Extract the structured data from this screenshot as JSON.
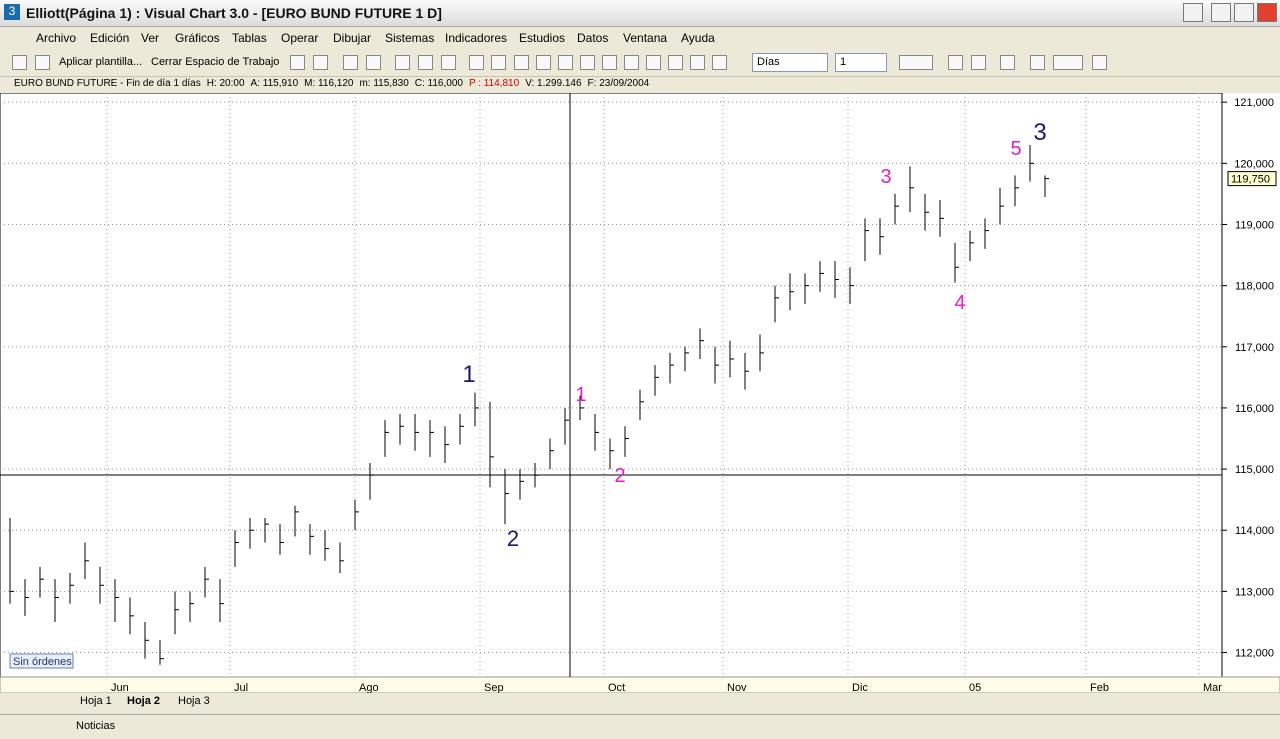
{
  "window": {
    "title": "Elliott(Página 1) : Visual Chart  3.0 - [EURO BUND FUTURE 1 D]"
  },
  "menu": [
    "Archivo",
    "Edición",
    "Ver",
    "Gráficos",
    "Tablas",
    "Operar",
    "Dibujar",
    "Sistemas",
    "Indicadores",
    "Estudios",
    "Datos",
    "Ventana",
    "Ayuda"
  ],
  "toolbar": {
    "apply_template": "Aplicar plantilla...",
    "close_workspace": "Cerrar Espacio de Trabajo",
    "period": "Días",
    "period_count": "1"
  },
  "info_bar": [
    {
      "text": "EURO BUND FUTURE - Fin de día 1 días",
      "color": "#000000"
    },
    {
      "text": "H: 20:00",
      "color": "#000000"
    },
    {
      "text": "A: 115,910",
      "color": "#000000"
    },
    {
      "text": "M: 116,120",
      "color": "#000000"
    },
    {
      "text": "m: 115,830",
      "color": "#000000"
    },
    {
      "text": "C: 116,000",
      "color": "#000000"
    },
    {
      "text": "P : 114,810",
      "color": "#d00000"
    },
    {
      "text": "V: 1.299.146",
      "color": "#000000"
    },
    {
      "text": "F: 23/09/2004",
      "color": "#000000"
    }
  ],
  "chart_data": {
    "type": "ohlc",
    "color": "#000000",
    "grid": true,
    "ylim": [
      111.6,
      121.15
    ],
    "yticks": [
      {
        "value": 112,
        "label": "112,000"
      },
      {
        "value": 113,
        "label": "113,000"
      },
      {
        "value": 114,
        "label": "114,000"
      },
      {
        "value": 115,
        "label": "115,000"
      },
      {
        "value": 116,
        "label": "116,000"
      },
      {
        "value": 117,
        "label": "117,000"
      },
      {
        "value": 118,
        "label": "118,000"
      },
      {
        "value": 119,
        "label": "119,000"
      },
      {
        "value": 120,
        "label": "120,000"
      },
      {
        "value": 121,
        "label": "121,000"
      }
    ],
    "month_labels": [
      "Jun",
      "Jul",
      "Ago",
      "Sep",
      "Oct",
      "Nov",
      "Dic",
      "05",
      "Feb",
      "Mar"
    ],
    "high": [
      114.2,
      113.2,
      113.4,
      113.2,
      113.3,
      113.8,
      113.4,
      113.2,
      112.9,
      112.5,
      112.2,
      113.0,
      113.0,
      113.4,
      113.2,
      114.0,
      114.2,
      114.2,
      114.1,
      114.4,
      114.1,
      114.0,
      113.8,
      114.5,
      115.1,
      115.8,
      115.9,
      115.9,
      115.8,
      115.7,
      115.9,
      116.25,
      116.1,
      115.0,
      115.0,
      115.1,
      115.5,
      116.0,
      116.2,
      115.9,
      115.5,
      115.7,
      116.3,
      116.7,
      116.9,
      117.0,
      117.3,
      117.0,
      117.1,
      116.9,
      117.2,
      118.0,
      118.2,
      118.2,
      118.4,
      118.4,
      118.3,
      119.1,
      119.1,
      119.5,
      119.95,
      119.5,
      119.4,
      118.7,
      118.9,
      119.1,
      119.6,
      119.8,
      120.3,
      119.8
    ],
    "low": [
      112.8,
      112.6,
      112.9,
      112.5,
      112.8,
      113.2,
      112.8,
      112.5,
      112.3,
      111.9,
      111.8,
      112.3,
      112.5,
      112.9,
      112.5,
      113.4,
      113.7,
      113.8,
      113.6,
      113.9,
      113.6,
      113.5,
      113.3,
      114.0,
      114.5,
      115.2,
      115.4,
      115.3,
      115.2,
      115.1,
      115.4,
      115.7,
      114.7,
      114.1,
      114.5,
      114.7,
      115.0,
      115.4,
      115.8,
      115.3,
      115.0,
      115.2,
      115.8,
      116.2,
      116.4,
      116.6,
      116.8,
      116.4,
      116.5,
      116.3,
      116.6,
      117.4,
      117.6,
      117.7,
      117.9,
      117.8,
      117.7,
      118.4,
      118.5,
      119.0,
      119.2,
      118.9,
      118.8,
      118.05,
      118.4,
      118.6,
      119.0,
      119.3,
      119.7,
      119.45
    ],
    "close": [
      113.0,
      112.9,
      113.2,
      112.9,
      113.1,
      113.5,
      113.1,
      112.9,
      112.6,
      112.2,
      111.9,
      112.7,
      112.8,
      113.2,
      112.8,
      113.8,
      114.0,
      114.1,
      113.8,
      114.3,
      113.9,
      113.7,
      113.5,
      114.3,
      114.9,
      115.6,
      115.7,
      115.6,
      115.6,
      115.4,
      115.7,
      116.0,
      115.2,
      114.6,
      114.8,
      114.9,
      115.3,
      115.8,
      116.0,
      115.6,
      115.3,
      115.5,
      116.1,
      116.5,
      116.7,
      116.9,
      117.1,
      116.7,
      116.8,
      116.6,
      116.9,
      117.8,
      117.9,
      118.0,
      118.2,
      118.1,
      118.0,
      118.9,
      118.8,
      119.3,
      119.6,
      119.2,
      119.1,
      118.3,
      118.7,
      118.9,
      119.3,
      119.6,
      120.0,
      119.75
    ],
    "last_close_label": "119,750",
    "annotations": [
      {
        "text": "1",
        "color": "#1a1a6e"
      },
      {
        "text": "2",
        "color": "#1a1a6e"
      },
      {
        "text": "3",
        "color": "#1a1a6e"
      },
      {
        "text": "1",
        "color": "#e020c0"
      },
      {
        "text": "2",
        "color": "#e020c0"
      },
      {
        "text": "3",
        "color": "#e020c0"
      },
      {
        "text": "4",
        "color": "#e020c0"
      },
      {
        "text": "5",
        "color": "#e020c0"
      }
    ],
    "orders_label": "Sin órdenes"
  },
  "tabs": [
    "Hoja 1",
    "Hoja 2",
    "Hoja 3"
  ],
  "status_bar": {
    "news": "Noticias"
  }
}
